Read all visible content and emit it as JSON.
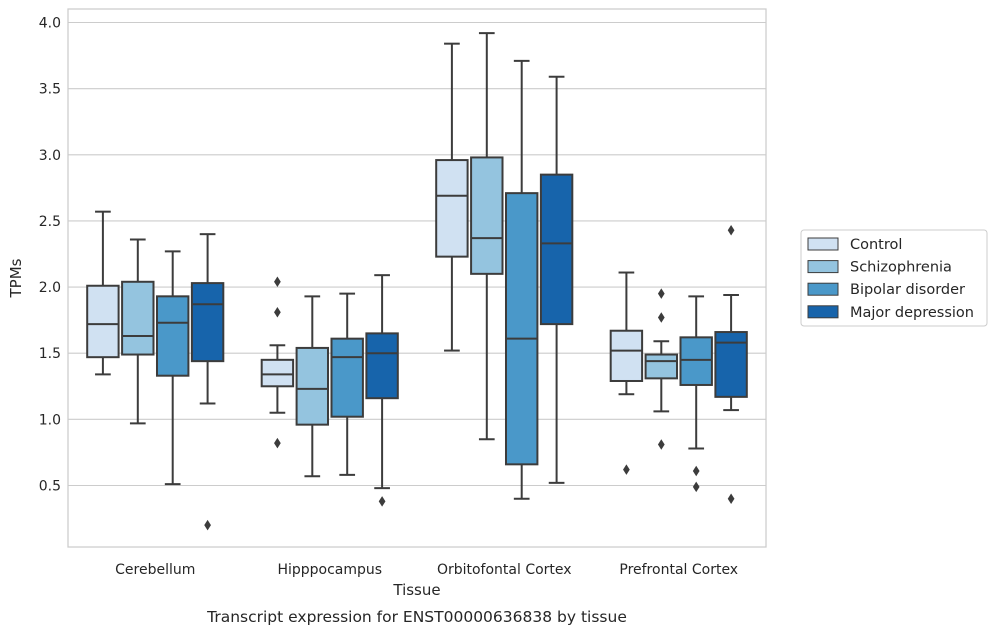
{
  "caption": "Transcript expression for ENST00000636838 by tissue",
  "chart_data": {
    "type": "box",
    "title": "",
    "xlabel": "Tissue",
    "ylabel": "TPMs",
    "ylim": [
      0.02,
      4.1
    ],
    "yticks": [
      0.5,
      1.0,
      1.5,
      2.0,
      2.5,
      3.0,
      3.5,
      4.0
    ],
    "ytick_labels": [
      "0.5",
      "1.0",
      "1.5",
      "2.0",
      "2.5",
      "3.0",
      "3.5",
      "4.0"
    ],
    "grid": "horizontal",
    "legend_position": "right",
    "categories": [
      "Cerebellum",
      "Hipppocampus",
      "Orbitofontal Cortex",
      "Prefrontal Cortex"
    ],
    "series": [
      {
        "name": "Control",
        "color": "#d0e1f2",
        "boxes": [
          {
            "whislo": 1.34,
            "q1": 1.47,
            "med": 1.72,
            "q3": 2.01,
            "whishi": 2.57,
            "fliers": []
          },
          {
            "whislo": 1.05,
            "q1": 1.25,
            "med": 1.34,
            "q3": 1.45,
            "whishi": 1.56,
            "fliers": [
              2.04,
              1.81,
              0.82
            ]
          },
          {
            "whislo": 1.52,
            "q1": 2.23,
            "med": 2.69,
            "q3": 2.96,
            "whishi": 3.84,
            "fliers": []
          },
          {
            "whislo": 1.19,
            "q1": 1.29,
            "med": 1.52,
            "q3": 1.67,
            "whishi": 2.11,
            "fliers": [
              0.62
            ]
          }
        ]
      },
      {
        "name": "Schizophrenia",
        "color": "#94c4df",
        "boxes": [
          {
            "whislo": 0.97,
            "q1": 1.49,
            "med": 1.63,
            "q3": 2.04,
            "whishi": 2.36,
            "fliers": []
          },
          {
            "whislo": 0.57,
            "q1": 0.96,
            "med": 1.23,
            "q3": 1.54,
            "whishi": 1.93,
            "fliers": []
          },
          {
            "whislo": 0.85,
            "q1": 2.1,
            "med": 2.37,
            "q3": 2.98,
            "whishi": 3.92,
            "fliers": []
          },
          {
            "whislo": 1.06,
            "q1": 1.31,
            "med": 1.44,
            "q3": 1.49,
            "whishi": 1.59,
            "fliers": [
              1.95,
              1.77,
              0.81
            ]
          }
        ]
      },
      {
        "name": "Bipolar disorder",
        "color": "#4a98c9",
        "boxes": [
          {
            "whislo": 0.51,
            "q1": 1.33,
            "med": 1.73,
            "q3": 1.93,
            "whishi": 2.27,
            "fliers": []
          },
          {
            "whislo": 0.58,
            "q1": 1.02,
            "med": 1.47,
            "q3": 1.61,
            "whishi": 1.95,
            "fliers": []
          },
          {
            "whislo": 0.4,
            "q1": 0.66,
            "med": 1.61,
            "q3": 2.71,
            "whishi": 3.71,
            "fliers": []
          },
          {
            "whislo": 0.78,
            "q1": 1.26,
            "med": 1.45,
            "q3": 1.62,
            "whishi": 1.93,
            "fliers": [
              0.61,
              0.49
            ]
          }
        ]
      },
      {
        "name": "Major depression",
        "color": "#1764ab",
        "boxes": [
          {
            "whislo": 1.12,
            "q1": 1.44,
            "med": 1.87,
            "q3": 2.03,
            "whishi": 2.4,
            "fliers": [
              0.2
            ]
          },
          {
            "whislo": 0.48,
            "q1": 1.16,
            "med": 1.5,
            "q3": 1.65,
            "whishi": 2.09,
            "fliers": [
              0.38
            ]
          },
          {
            "whislo": 0.52,
            "q1": 1.72,
            "med": 2.33,
            "q3": 2.85,
            "whishi": 3.59,
            "fliers": []
          },
          {
            "whislo": 1.07,
            "q1": 1.17,
            "med": 1.58,
            "q3": 1.66,
            "whishi": 1.94,
            "fliers": [
              2.43,
              0.4
            ]
          }
        ]
      }
    ]
  }
}
